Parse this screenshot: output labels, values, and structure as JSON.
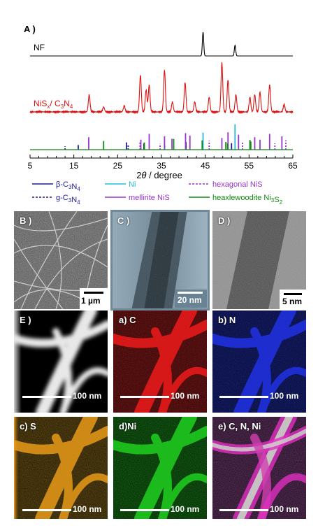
{
  "figure": {
    "panel_A_label": "A )",
    "panel_B_label": "B )",
    "panel_C_label": "C )",
    "panel_D_label": "D )",
    "panel_E_label": "E )",
    "map_a_label": "a) C",
    "map_b_label": "b) N",
    "map_c_label": "c) S",
    "map_d_label": "d)Ni",
    "map_e_label": "e) C, N, Ni",
    "scalebar_B": "1 µm",
    "scalebar_C": "20 nm",
    "scalebar_D": "5 nm",
    "scalebar_map": "100 nm"
  },
  "chart_data": {
    "type": "line",
    "xlabel": "2θ / degree",
    "xlim": [
      5,
      65
    ],
    "xticks": [
      5,
      15,
      25,
      35,
      45,
      55,
      65
    ],
    "series": [
      {
        "name": "NF",
        "color": "#000000",
        "peaks": [
          [
            44.5,
            1.0
          ],
          [
            51.8,
            0.45
          ]
        ]
      },
      {
        "name": "NiSx/C3N4",
        "color": "#dd1111",
        "peaks": [
          [
            18.5,
            0.35
          ],
          [
            21.8,
            0.1
          ],
          [
            26.5,
            0.12
          ],
          [
            30.2,
            0.75
          ],
          [
            31.5,
            0.45
          ],
          [
            32.2,
            0.55
          ],
          [
            35.7,
            0.85
          ],
          [
            37.5,
            0.2
          ],
          [
            40.4,
            0.6
          ],
          [
            42.6,
            0.2
          ],
          [
            45.9,
            0.3
          ],
          [
            48.8,
            1.0
          ],
          [
            50.2,
            0.65
          ],
          [
            52.0,
            0.35
          ],
          [
            55.2,
            0.3
          ],
          [
            56.3,
            0.35
          ],
          [
            57.5,
            0.4
          ],
          [
            59.7,
            0.55
          ],
          [
            63.0,
            0.15
          ]
        ]
      }
    ],
    "reference_lines": [
      {
        "name": "β-C3N4",
        "color": "#1a1a9a",
        "dash": false,
        "x": [
          16.0,
          27.0,
          31.0,
          35.7,
          40.6,
          51.0
        ]
      },
      {
        "name": "g-C3N4",
        "color": "#1a1a9a",
        "dash": true,
        "x": [
          13.0,
          27.4
        ]
      },
      {
        "name": "Ni",
        "color": "#22bbdd",
        "dash": false,
        "x": [
          44.5,
          51.8
        ]
      },
      {
        "name": "mellirite NiS",
        "color": "#9933cc",
        "dash": false,
        "x": [
          18.4,
          30.3,
          32.2,
          35.7,
          37.4,
          40.5,
          41.5,
          48.8,
          50.2,
          52.6,
          56.3,
          57.5,
          59.7,
          62.5
        ]
      },
      {
        "name": "hexagonal NiS",
        "color": "#9933cc",
        "dash": true,
        "x": [
          30.1,
          34.7,
          45.9,
          53.5,
          60.9,
          63.4
        ]
      },
      {
        "name": "heaxlewoodite Ni3S2",
        "color": "#118811",
        "dash": false,
        "x": [
          21.8,
          31.1,
          37.8,
          44.3,
          49.7,
          50.1,
          55.2,
          55.4
        ]
      }
    ],
    "legend_labels": [
      "β-C3N4",
      "g-C3N4",
      "Ni",
      "mellirite NiS",
      "hexagonal NiS",
      "heaxlewoodite Ni3S2"
    ]
  }
}
